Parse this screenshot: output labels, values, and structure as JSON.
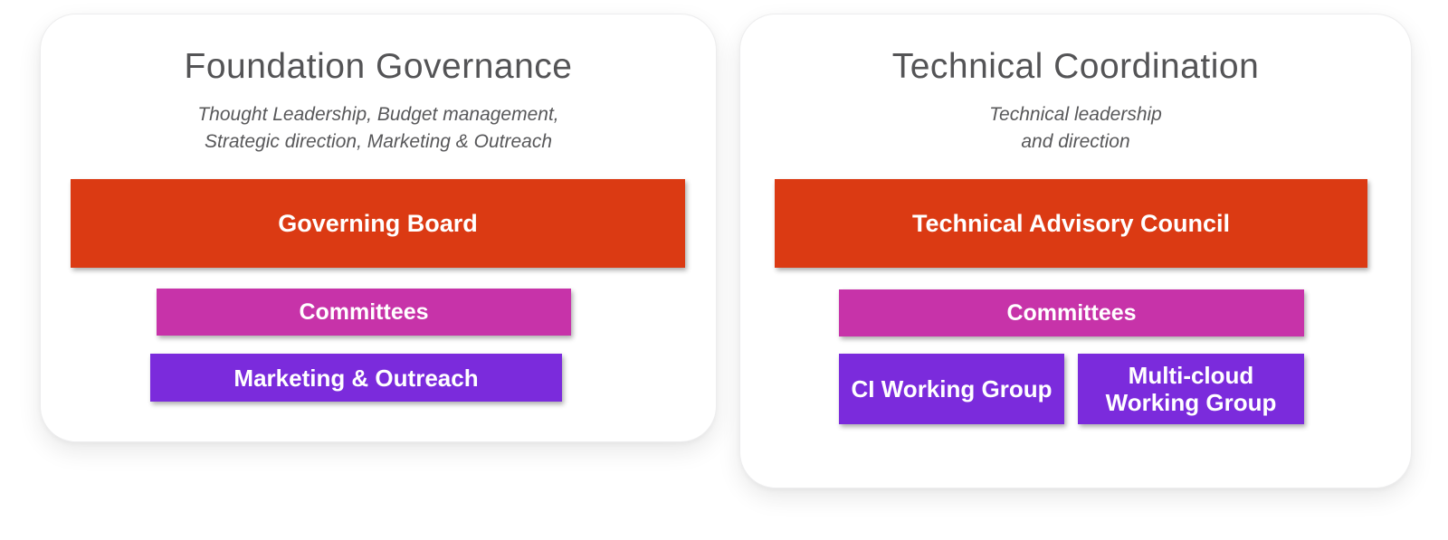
{
  "colors": {
    "primary_bar": "#db3a13",
    "secondary_bar": "#c733a9",
    "tertiary_bar": "#7b2bdc",
    "title_text": "#545456",
    "subtitle_text": "#58585a",
    "bar_text": "#ffffff",
    "card_background": "#ffffff",
    "page_background": "#ffffff"
  },
  "cards": [
    {
      "title": "Foundation Governance",
      "subtitle_lines": [
        "Thought Leadership, Budget management,",
        "Strategic direction, Marketing & Outreach"
      ],
      "primary_label": "Governing Board",
      "secondary_label": "Committees",
      "tertiary_labels": [
        "Marketing & Outreach"
      ]
    },
    {
      "title": "Technical Coordination",
      "subtitle_lines": [
        "Technical leadership",
        "and direction"
      ],
      "primary_label": "Technical Advisory Council",
      "secondary_label": "Committees",
      "tertiary_labels": [
        "CI Working Group",
        "Multi-cloud Working Group"
      ]
    }
  ]
}
